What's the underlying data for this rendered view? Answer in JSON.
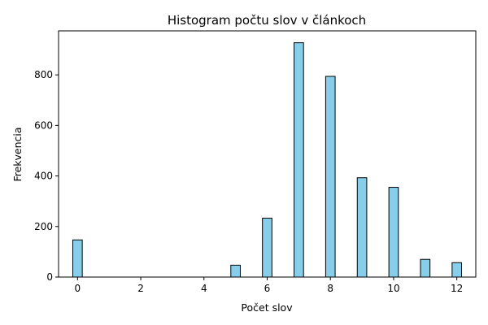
{
  "chart_data": {
    "type": "bar",
    "title": "Histogram počtu slov v článkoch",
    "xlabel": "Počet slov",
    "ylabel": "Frekvencia",
    "x": [
      0,
      5,
      6,
      7,
      8,
      9,
      10,
      11,
      12
    ],
    "values": [
      147,
      47,
      233,
      927,
      794,
      393,
      355,
      70,
      57
    ],
    "bin_width": 0.3,
    "xlim": [
      -0.6,
      12.6
    ],
    "ylim": [
      0,
      974
    ],
    "xticks": [
      0,
      2,
      4,
      6,
      8,
      10,
      12
    ],
    "yticks": [
      0,
      200,
      400,
      600,
      800
    ],
    "grid": false,
    "legend": "none",
    "bar_color": "#87ceeb",
    "edge_color": "#000000"
  }
}
